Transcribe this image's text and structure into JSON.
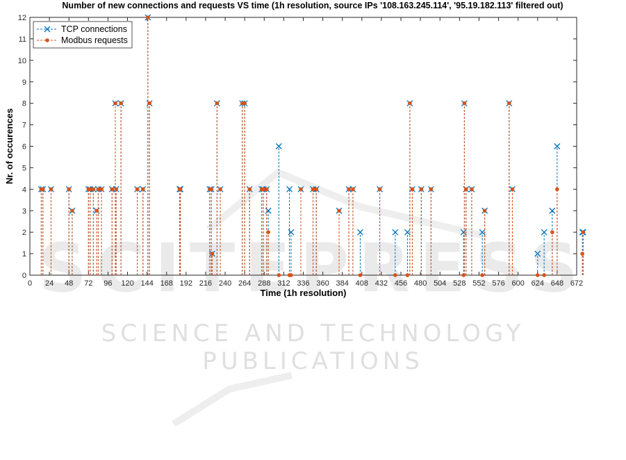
{
  "chart_data": {
    "type": "line",
    "title": "Number of new connections and requests VS time (1h resolution, source IPs '108.163.245.114', '95.19.182.113' filtered out)",
    "xlabel": "Time (1h resolution)",
    "ylabel": "Nr. of occurences",
    "xlim": [
      0,
      672
    ],
    "ylim": [
      0,
      12
    ],
    "xticks": [
      0,
      24,
      48,
      72,
      96,
      120,
      144,
      168,
      192,
      216,
      240,
      264,
      288,
      312,
      336,
      360,
      384,
      408,
      432,
      456,
      480,
      504,
      528,
      552,
      576,
      600,
      624,
      648,
      672
    ],
    "yticks": [
      0,
      1,
      2,
      3,
      4,
      5,
      6,
      7,
      8,
      9,
      10,
      11,
      12
    ],
    "legend_position": "top-left",
    "grid": false,
    "series": [
      {
        "name": "TCP connections",
        "style": "stem-x",
        "color": "#0072bd",
        "points": [
          [
            14,
            4
          ],
          [
            16,
            4
          ],
          [
            26,
            4
          ],
          [
            48,
            4
          ],
          [
            52,
            3
          ],
          [
            72,
            4
          ],
          [
            74,
            4
          ],
          [
            78,
            4
          ],
          [
            82,
            3
          ],
          [
            84,
            4
          ],
          [
            88,
            4
          ],
          [
            101,
            4
          ],
          [
            105,
            8
          ],
          [
            106,
            4
          ],
          [
            112,
            8
          ],
          [
            132,
            4
          ],
          [
            139,
            4
          ],
          [
            145,
            12
          ],
          [
            147,
            8
          ],
          [
            184,
            4
          ],
          [
            185,
            4
          ],
          [
            221,
            4
          ],
          [
            223,
            4
          ],
          [
            224,
            1
          ],
          [
            230,
            8
          ],
          [
            234,
            4
          ],
          [
            261,
            8
          ],
          [
            264,
            8
          ],
          [
            270,
            4
          ],
          [
            285,
            4
          ],
          [
            287,
            4
          ],
          [
            291,
            4
          ],
          [
            293,
            3
          ],
          [
            306,
            6
          ],
          [
            319,
            4
          ],
          [
            321,
            2
          ],
          [
            333,
            4
          ],
          [
            348,
            4
          ],
          [
            352,
            4
          ],
          [
            380,
            3
          ],
          [
            392,
            4
          ],
          [
            397,
            4
          ],
          [
            406,
            2
          ],
          [
            430,
            4
          ],
          [
            449,
            2
          ],
          [
            464,
            2
          ],
          [
            467,
            8
          ],
          [
            470,
            4
          ],
          [
            481,
            4
          ],
          [
            493,
            4
          ],
          [
            533,
            2
          ],
          [
            534,
            8
          ],
          [
            536,
            4
          ],
          [
            543,
            4
          ],
          [
            556,
            2
          ],
          [
            559,
            3
          ],
          [
            589,
            8
          ],
          [
            593,
            4
          ],
          [
            624,
            1
          ],
          [
            632,
            2
          ],
          [
            642,
            3
          ],
          [
            648,
            6
          ],
          [
            679,
            2
          ],
          [
            680,
            2
          ]
        ]
      },
      {
        "name": "Modbus requests",
        "style": "stem-dot",
        "color": "#d95319",
        "points": [
          [
            14,
            4
          ],
          [
            16,
            4
          ],
          [
            26,
            4
          ],
          [
            48,
            4
          ],
          [
            52,
            3
          ],
          [
            72,
            4
          ],
          [
            74,
            4
          ],
          [
            78,
            4
          ],
          [
            82,
            3
          ],
          [
            84,
            4
          ],
          [
            88,
            4
          ],
          [
            101,
            4
          ],
          [
            105,
            8
          ],
          [
            106,
            4
          ],
          [
            112,
            8
          ],
          [
            132,
            4
          ],
          [
            139,
            4
          ],
          [
            145,
            12
          ],
          [
            147,
            8
          ],
          [
            184,
            4
          ],
          [
            185,
            4
          ],
          [
            221,
            4
          ],
          [
            223,
            4
          ],
          [
            224,
            1
          ],
          [
            230,
            8
          ],
          [
            234,
            4
          ],
          [
            261,
            8
          ],
          [
            264,
            8
          ],
          [
            270,
            4
          ],
          [
            285,
            4
          ],
          [
            287,
            4
          ],
          [
            291,
            4
          ],
          [
            293,
            2
          ],
          [
            306,
            0
          ],
          [
            319,
            0
          ],
          [
            321,
            0
          ],
          [
            333,
            4
          ],
          [
            348,
            4
          ],
          [
            352,
            4
          ],
          [
            380,
            3
          ],
          [
            392,
            4
          ],
          [
            397,
            4
          ],
          [
            406,
            0
          ],
          [
            430,
            4
          ],
          [
            449,
            0
          ],
          [
            464,
            0
          ],
          [
            467,
            8
          ],
          [
            470,
            4
          ],
          [
            481,
            4
          ],
          [
            493,
            4
          ],
          [
            533,
            0
          ],
          [
            534,
            8
          ],
          [
            536,
            4
          ],
          [
            543,
            4
          ],
          [
            556,
            0
          ],
          [
            559,
            3
          ],
          [
            589,
            8
          ],
          [
            593,
            4
          ],
          [
            624,
            0
          ],
          [
            632,
            0
          ],
          [
            642,
            2
          ],
          [
            648,
            4
          ],
          [
            679,
            1
          ],
          [
            680,
            2
          ]
        ]
      }
    ]
  },
  "watermark": {
    "main": "SCITEPRESS",
    "sub": "SCIENCE AND TECHNOLOGY PUBLICATIONS"
  }
}
